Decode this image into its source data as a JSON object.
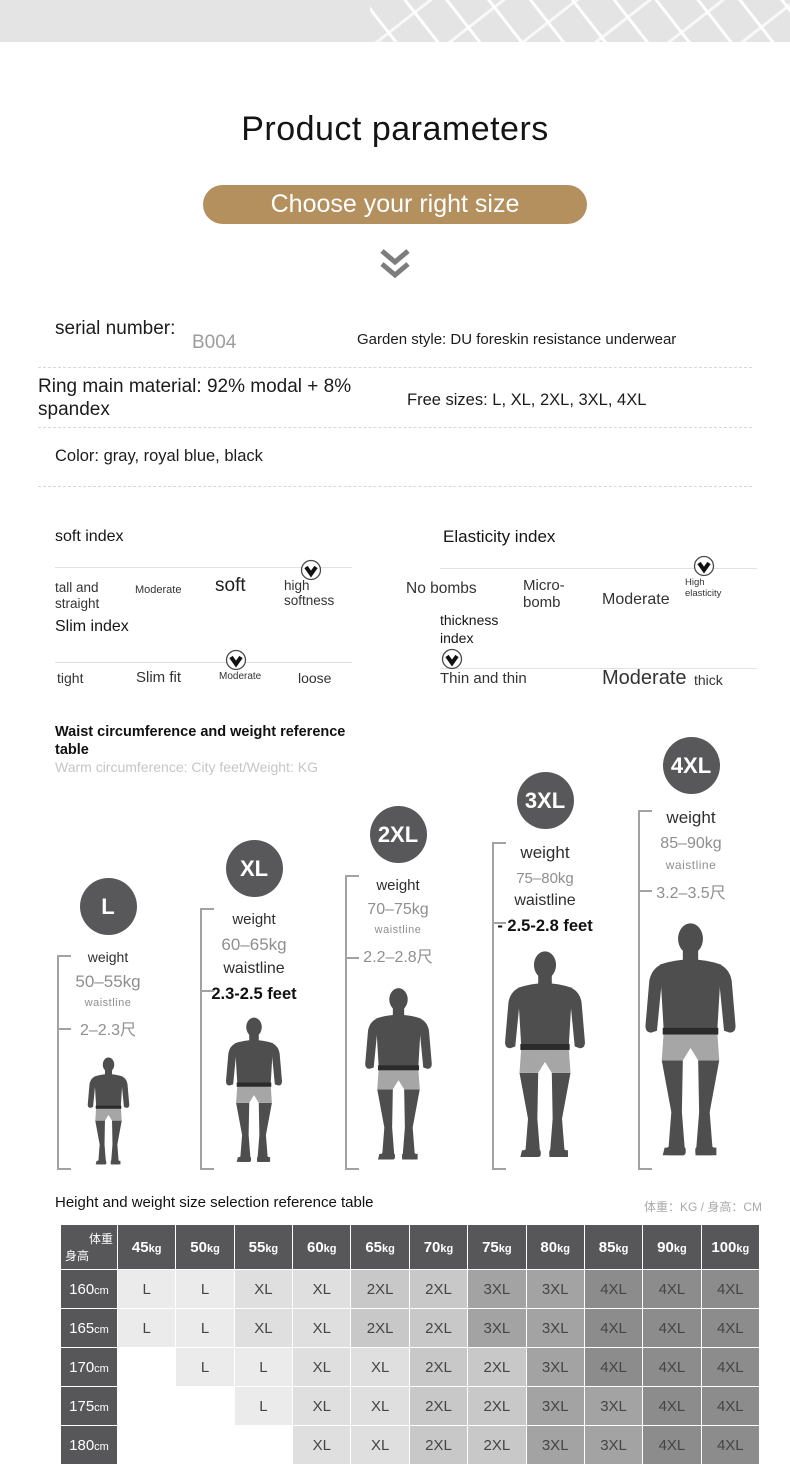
{
  "header": {
    "title": "Product parameters",
    "cta_label": "Choose your right size"
  },
  "info": {
    "serial_label": "serial number:",
    "serial_value": "B004",
    "style": "Garden style: DU foreskin resistance underwear",
    "material": "Ring main material: 92% modal + 8% spandex",
    "free_sizes": "Free sizes: L, XL, 2XL, 3XL, 4XL",
    "color": "Color: gray, royal blue, black"
  },
  "indexes": {
    "soft": {
      "title": "soft index",
      "labels": [
        "tall and straight",
        "Moderate",
        "soft",
        "high softness"
      ],
      "indicator_on": "high softness"
    },
    "slim": {
      "title": "Slim index",
      "labels": [
        "tight",
        "Slim fit",
        "Moderate",
        "loose"
      ],
      "indicator_on": "Moderate"
    },
    "elasticity": {
      "title": "Elasticity index",
      "labels": [
        "No bombs",
        "Micro-bomb",
        "Moderate",
        "High elasticity"
      ],
      "indicator_on": "High elasticity"
    },
    "thickness": {
      "title": "thickness index",
      "labels": [
        "Thin and thin",
        "Moderate",
        "thick"
      ],
      "indicator_on": "Thin and thin"
    }
  },
  "size_guide": {
    "heading": "Waist circumference and weight reference table",
    "subheading": "Warm circumference: City feet/Weight: KG",
    "columns": [
      {
        "label": "L",
        "weight_label": "weight",
        "weight": "50–55kg",
        "waistline_label": "waistline",
        "waist": "2–2.3尺"
      },
      {
        "label": "XL",
        "weight_label": "weight",
        "weight": "60–65kg",
        "waistline_label": "waistline",
        "waist": "2.3-2.5 feet"
      },
      {
        "label": "2XL",
        "weight_label": "weight",
        "weight": "70–75kg",
        "waistline_label": "waistline",
        "waist": "2.2–2.8尺"
      },
      {
        "label": "3XL",
        "weight_label": "weight",
        "weight": "75–80kg",
        "waistline_label": "waistline",
        "waist": "- 2.5-2.8 feet"
      },
      {
        "label": "4XL",
        "weight_label": "weight",
        "weight": "85–90kg",
        "waistline_label": "waistline",
        "waist": "3.2–3.5尺"
      }
    ]
  },
  "size_table": {
    "heading": "Height and weight size selection reference table",
    "unit_note": "体重：KG / 身高：CM",
    "corner": {
      "top": "体重",
      "bottom": "身高"
    },
    "weight_columns": [
      "45kg",
      "50kg",
      "55kg",
      "60kg",
      "65kg",
      "70kg",
      "75kg",
      "80kg",
      "85kg",
      "90kg",
      "100kg"
    ],
    "rows": [
      {
        "height": "160cm",
        "cells": [
          "L",
          "L",
          "XL",
          "XL",
          "2XL",
          "2XL",
          "3XL",
          "3XL",
          "4XL",
          "4XL",
          "4XL"
        ]
      },
      {
        "height": "165cm",
        "cells": [
          "L",
          "L",
          "XL",
          "XL",
          "2XL",
          "2XL",
          "3XL",
          "3XL",
          "4XL",
          "4XL",
          "4XL"
        ]
      },
      {
        "height": "170cm",
        "cells": [
          "",
          "L",
          "L",
          "XL",
          "XL",
          "2XL",
          "2XL",
          "3XL",
          "4XL",
          "4XL",
          "4XL"
        ]
      },
      {
        "height": "175cm",
        "cells": [
          "",
          "",
          "L",
          "XL",
          "XL",
          "2XL",
          "2XL",
          "3XL",
          "3XL",
          "4XL",
          "4XL"
        ]
      },
      {
        "height": "180cm",
        "cells": [
          "",
          "",
          "",
          "XL",
          "XL",
          "2XL",
          "2XL",
          "3XL",
          "3XL",
          "4XL",
          "4XL"
        ]
      }
    ],
    "size_colors": {
      "L": "#ebebeb",
      "XL": "#dfdfdf",
      "2XL": "#c8c8c8",
      "3XL": "#a3a3a3",
      "4XL": "#8c8c8c",
      "empty": "#ffffff"
    }
  },
  "colors": {
    "accent": "#b4905f",
    "size_circle": "#58585a",
    "table_header": "#57575a"
  }
}
